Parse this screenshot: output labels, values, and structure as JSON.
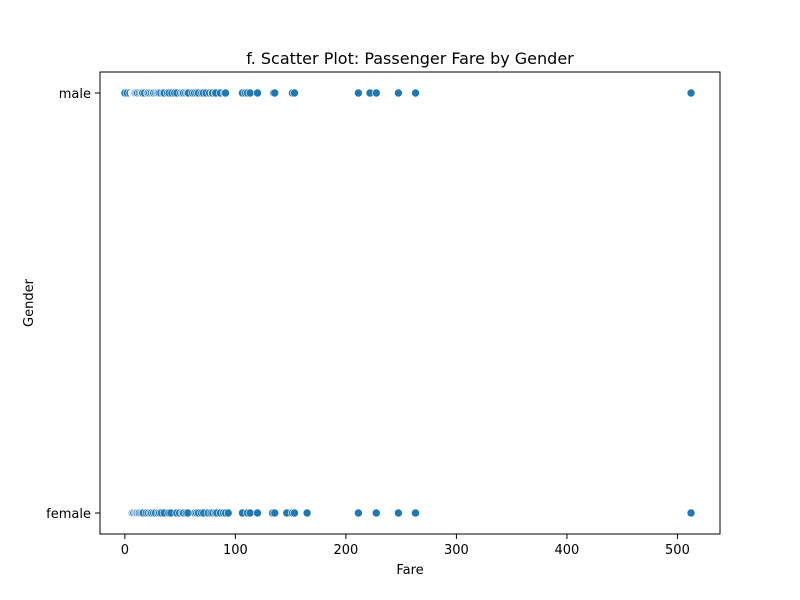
{
  "chart_data": {
    "type": "scatter",
    "title": "f. Scatter Plot: Passenger Fare by Gender",
    "xlabel": "Fare",
    "ylabel": "Gender",
    "xlim": [
      -22.5,
      538.5
    ],
    "xticks": [
      0,
      100,
      200,
      300,
      400,
      500
    ],
    "categories": [
      "male",
      "female"
    ],
    "grid": false,
    "legend": "none",
    "marker_color": "#1f77b4",
    "series": [
      {
        "name": "male",
        "x": [
          0,
          2,
          4.5,
          6.5,
          7,
          7.25,
          7.75,
          7.9,
          8.05,
          8.5,
          9,
          9.5,
          10.5,
          11.5,
          13,
          14.5,
          15.5,
          16,
          17.8,
          20.5,
          21,
          22.5,
          24,
          25.5,
          26,
          27.7,
          29,
          30,
          31,
          32.5,
          34.5,
          35.5,
          38.5,
          40,
          42.5,
          45,
          47,
          50.5,
          52,
          53.1,
          55,
          56.5,
          57.5,
          61.2,
          63,
          65,
          66.6,
          69.5,
          71,
          73.5,
          76.7,
          78.9,
          79.2,
          81.9,
          82.2,
          86.5,
          90,
          91.1,
          106.4,
          108.9,
          110.9,
          113.3,
          120,
          134.5,
          135.6,
          151.6,
          153.5,
          211.3,
          221.8,
          227.5,
          247.5,
          263,
          512.3
        ]
      },
      {
        "name": "female",
        "x": [
          6.75,
          7.75,
          8.05,
          9.5,
          10.5,
          11.1,
          12.5,
          13,
          14.4,
          15.5,
          16.7,
          19.3,
          21,
          23,
          24.2,
          26,
          27.7,
          30,
          31.4,
          33,
          35.5,
          39.7,
          41.6,
          46.9,
          49.5,
          51.9,
          53.1,
          55.4,
          57,
          63.4,
          65,
          66.6,
          69.3,
          71.3,
          75.3,
          77.9,
          79.6,
          81.9,
          83.2,
          86.5,
          89.1,
          91.1,
          93.5,
          106.4,
          110.9,
          113.3,
          120,
          133.7,
          135.6,
          146.5,
          151.6,
          153.5,
          164.9,
          211.3,
          227.5,
          247.5,
          262.4,
          263,
          512.3
        ]
      }
    ]
  }
}
